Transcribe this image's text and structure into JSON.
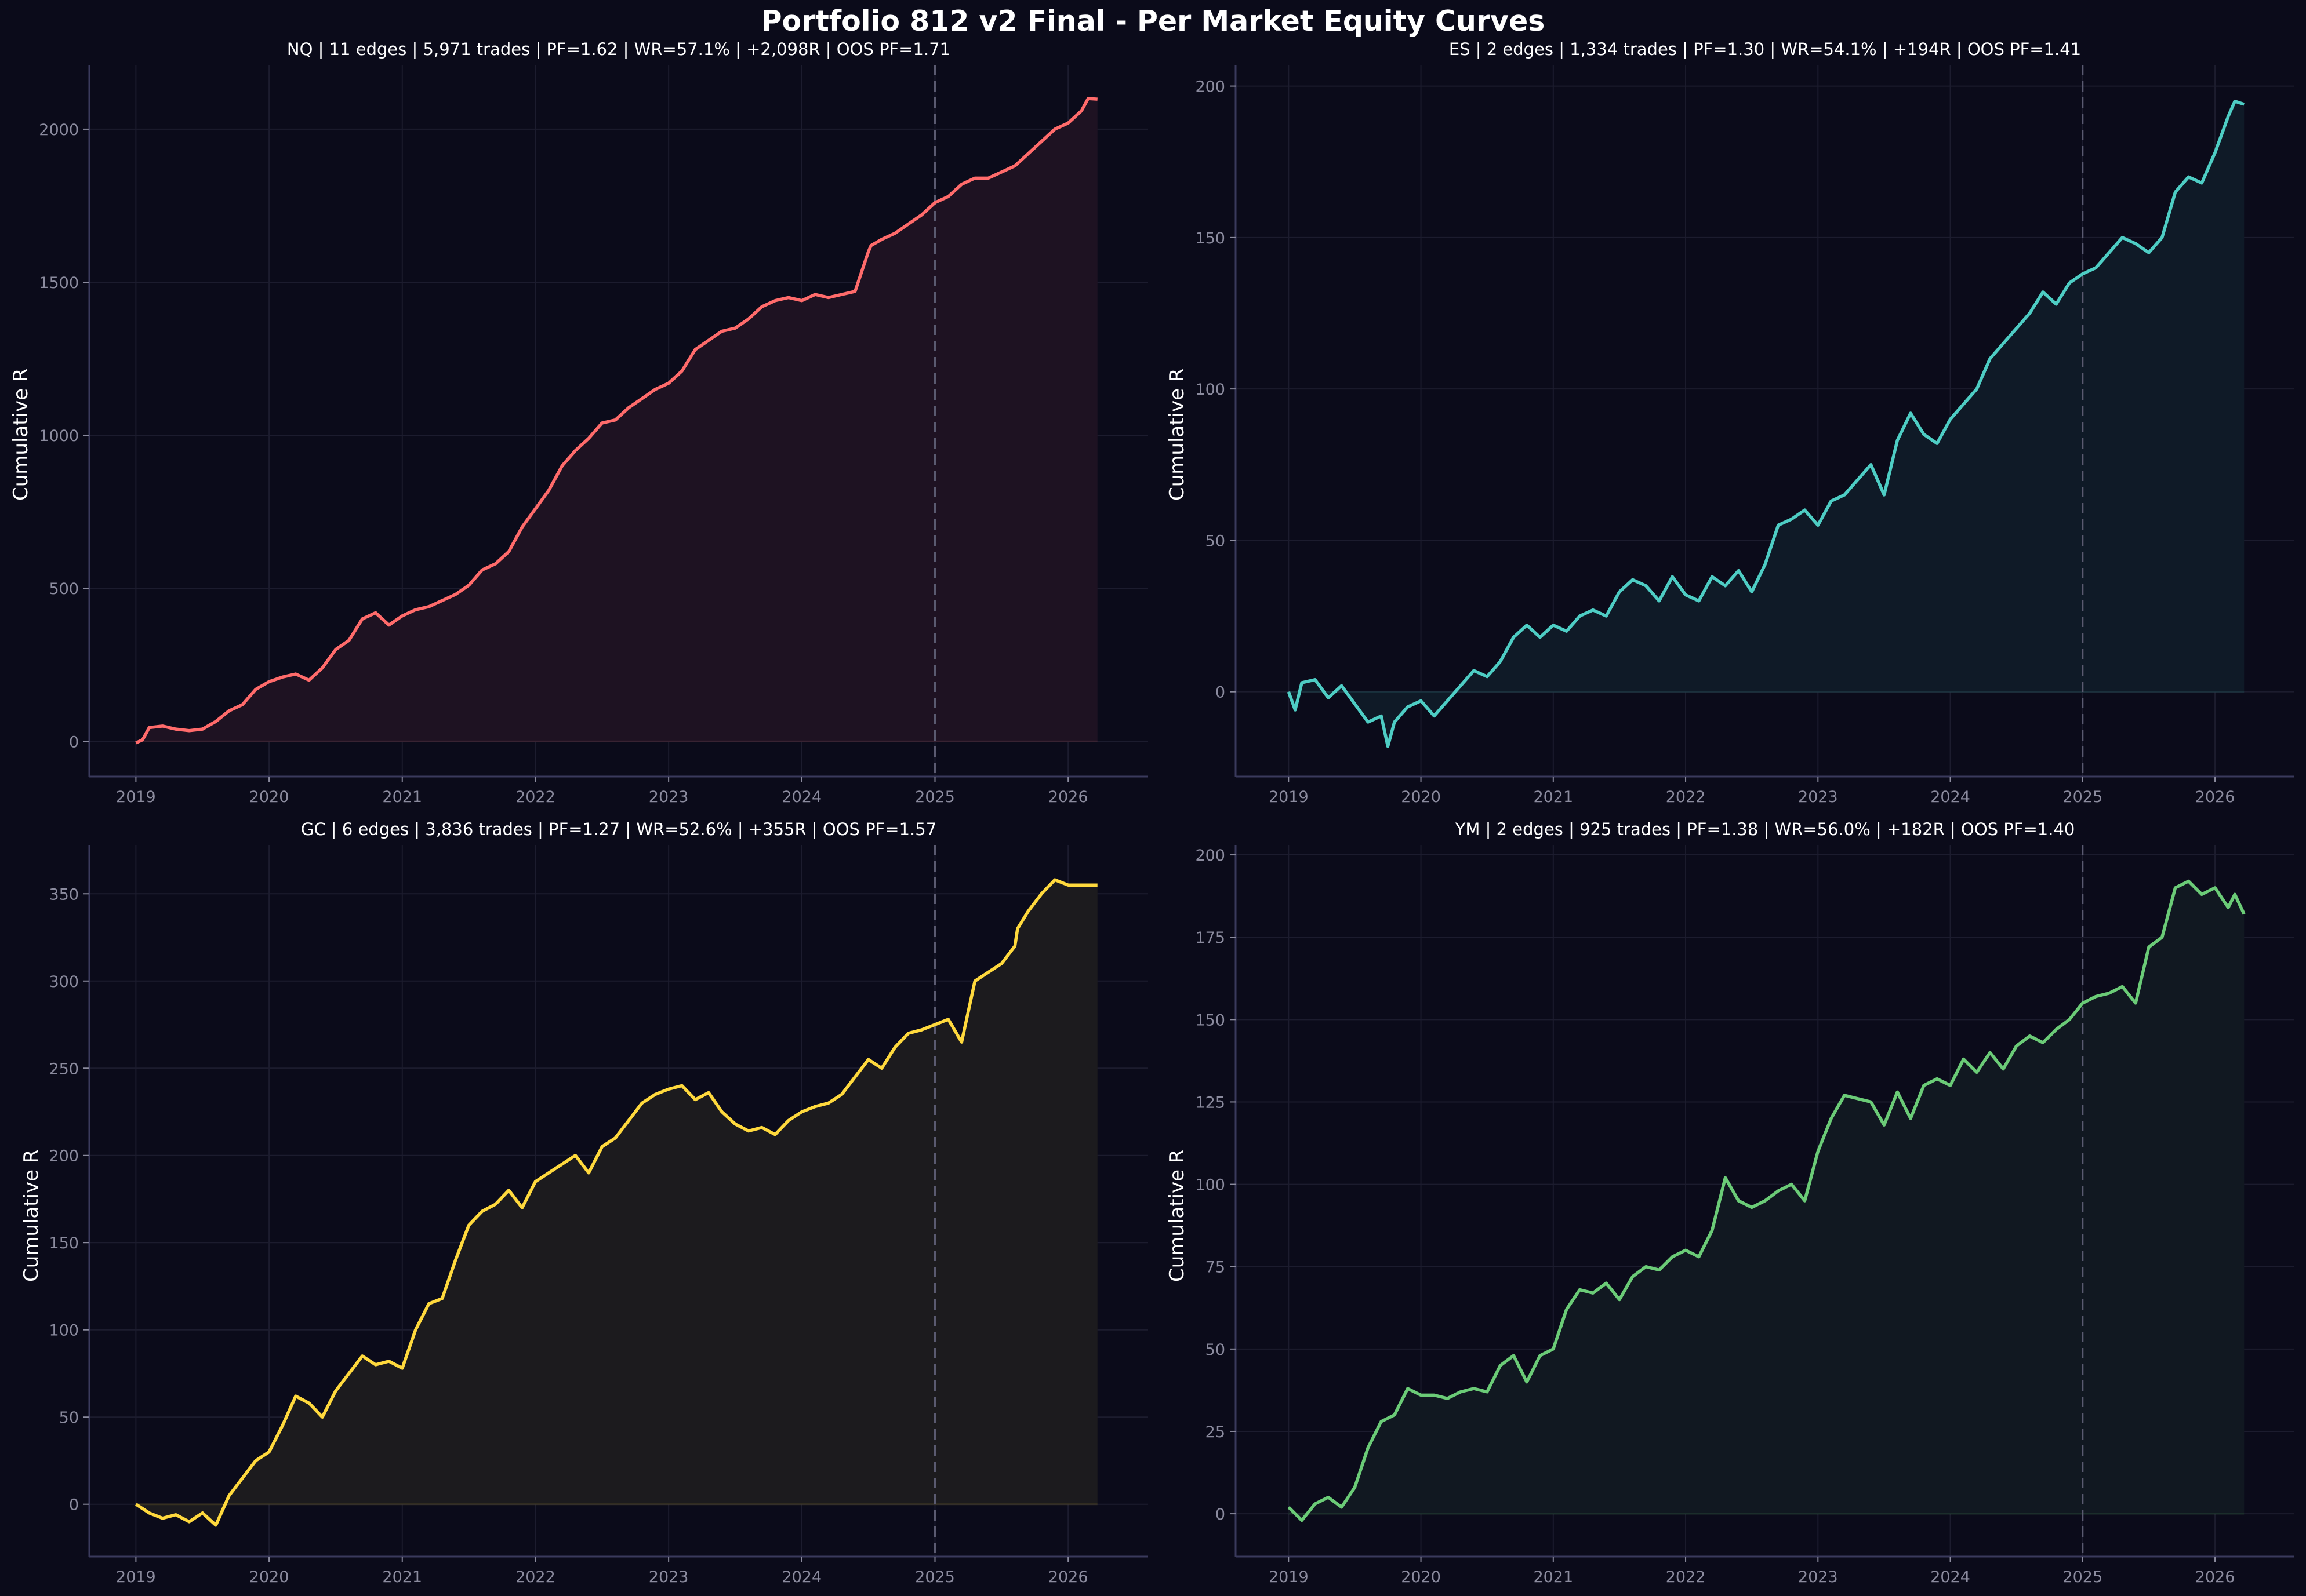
{
  "figure": {
    "title": "Portfolio 812 v2 Final - Per Market Equity Curves",
    "background": "#0b0b1a",
    "spine_color": "#3a3a5c",
    "grid_color": "#1c1c2e",
    "tick_label_color": "#8b8b9e",
    "oos_line_color": "#5a5a70"
  },
  "chart_data": [
    {
      "type": "area",
      "market": "NQ",
      "title": "NQ | 11 edges | 5,971 trades | PF=1.62 | WR=57.1% | +2,098R | OOS PF=1.71",
      "xlabel": "",
      "ylabel": "Cumulative R",
      "color": "#ff6b6b",
      "fill": "#1e1222",
      "xlim": [
        2018.65,
        2026.6
      ],
      "ylim": [
        -115,
        2210
      ],
      "yticks": [
        0,
        500,
        1000,
        1500,
        2000
      ],
      "xticks": [
        2019,
        2020,
        2021,
        2022,
        2023,
        2024,
        2025,
        2026
      ],
      "oos_start": 2025.0,
      "grid": true,
      "x": [
        2019.0,
        2019.05,
        2019.1,
        2019.2,
        2019.3,
        2019.4,
        2019.5,
        2019.6,
        2019.7,
        2019.8,
        2019.9,
        2020.0,
        2020.1,
        2020.2,
        2020.3,
        2020.4,
        2020.5,
        2020.6,
        2020.7,
        2020.8,
        2020.9,
        2021.0,
        2021.1,
        2021.2,
        2021.3,
        2021.4,
        2021.5,
        2021.6,
        2021.7,
        2021.8,
        2021.9,
        2022.0,
        2022.1,
        2022.2,
        2022.3,
        2022.4,
        2022.5,
        2022.6,
        2022.7,
        2022.8,
        2022.9,
        2023.0,
        2023.1,
        2023.2,
        2023.3,
        2023.4,
        2023.5,
        2023.6,
        2023.7,
        2023.8,
        2023.9,
        2024.0,
        2024.1,
        2024.2,
        2024.3,
        2024.4,
        2024.5,
        2024.52,
        2024.6,
        2024.7,
        2024.8,
        2024.9,
        2025.0,
        2025.1,
        2025.2,
        2025.3,
        2025.4,
        2025.5,
        2025.6,
        2025.7,
        2025.8,
        2025.9,
        2026.0,
        2026.05,
        2026.1,
        2026.15,
        2026.22
      ],
      "y": [
        -5,
        5,
        45,
        50,
        40,
        35,
        40,
        65,
        100,
        120,
        170,
        195,
        210,
        220,
        200,
        240,
        300,
        330,
        400,
        420,
        380,
        410,
        430,
        440,
        460,
        480,
        510,
        560,
        580,
        620,
        700,
        760,
        820,
        900,
        950,
        990,
        1040,
        1050,
        1090,
        1120,
        1150,
        1170,
        1210,
        1280,
        1310,
        1340,
        1350,
        1380,
        1420,
        1440,
        1450,
        1440,
        1460,
        1450,
        1460,
        1470,
        1600,
        1620,
        1640,
        1660,
        1690,
        1720,
        1760,
        1780,
        1820,
        1840,
        1840,
        1860,
        1880,
        1920,
        1960,
        2000,
        2020,
        2040,
        2060,
        2100,
        2098
      ]
    },
    {
      "type": "area",
      "market": "ES",
      "title": "ES | 2 edges | 1,334 trades | PF=1.30 | WR=54.1% | +194R | OOS PF=1.41",
      "xlabel": "",
      "ylabel": "Cumulative R",
      "color": "#4ecdc4",
      "fill": "#0f1a27",
      "xlim": [
        2018.6,
        2026.6
      ],
      "ylim": [
        -28,
        207
      ],
      "yticks": [
        0,
        50,
        100,
        150,
        200
      ],
      "xticks": [
        2019,
        2020,
        2021,
        2022,
        2023,
        2024,
        2025,
        2026
      ],
      "oos_start": 2025.0,
      "grid": true,
      "x": [
        2019.0,
        2019.05,
        2019.1,
        2019.2,
        2019.3,
        2019.4,
        2019.5,
        2019.6,
        2019.7,
        2019.75,
        2019.8,
        2019.9,
        2020.0,
        2020.1,
        2020.2,
        2020.3,
        2020.4,
        2020.5,
        2020.6,
        2020.7,
        2020.8,
        2020.9,
        2021.0,
        2021.1,
        2021.2,
        2021.3,
        2021.4,
        2021.5,
        2021.6,
        2021.7,
        2021.8,
        2021.9,
        2022.0,
        2022.1,
        2022.2,
        2022.3,
        2022.4,
        2022.5,
        2022.6,
        2022.7,
        2022.8,
        2022.9,
        2023.0,
        2023.1,
        2023.2,
        2023.3,
        2023.4,
        2023.5,
        2023.6,
        2023.7,
        2023.8,
        2023.9,
        2024.0,
        2024.1,
        2024.2,
        2024.3,
        2024.4,
        2024.5,
        2024.6,
        2024.7,
        2024.8,
        2024.9,
        2025.0,
        2025.1,
        2025.2,
        2025.3,
        2025.4,
        2025.5,
        2025.6,
        2025.7,
        2025.8,
        2025.9,
        2026.0,
        2026.1,
        2026.15,
        2026.22
      ],
      "y": [
        0,
        -6,
        3,
        4,
        -2,
        2,
        -4,
        -10,
        -8,
        -18,
        -10,
        -5,
        -3,
        -8,
        -3,
        2,
        7,
        5,
        10,
        18,
        22,
        18,
        22,
        20,
        25,
        27,
        25,
        33,
        37,
        35,
        30,
        38,
        32,
        30,
        38,
        35,
        40,
        33,
        42,
        55,
        57,
        60,
        55,
        63,
        65,
        70,
        75,
        65,
        83,
        92,
        85,
        82,
        90,
        95,
        100,
        110,
        115,
        120,
        125,
        132,
        128,
        135,
        138,
        140,
        145,
        150,
        148,
        145,
        150,
        165,
        170,
        168,
        178,
        190,
        195,
        194
      ]
    },
    {
      "type": "area",
      "market": "GC",
      "title": "GC | 6 edges | 3,836 trades | PF=1.27 | WR=52.6% | +355R | OOS PF=1.57",
      "xlabel": "",
      "ylabel": "Cumulative R",
      "color": "#ffd93d",
      "fill": "#1c1b1e",
      "xlim": [
        2018.65,
        2026.6
      ],
      "ylim": [
        -30,
        378
      ],
      "yticks": [
        0,
        50,
        100,
        150,
        200,
        250,
        300,
        350
      ],
      "xticks": [
        2019,
        2020,
        2021,
        2022,
        2023,
        2024,
        2025,
        2026
      ],
      "oos_start": 2025.0,
      "grid": true,
      "x": [
        2019.0,
        2019.1,
        2019.2,
        2019.3,
        2019.4,
        2019.5,
        2019.6,
        2019.7,
        2019.8,
        2019.9,
        2020.0,
        2020.1,
        2020.2,
        2020.3,
        2020.4,
        2020.5,
        2020.6,
        2020.7,
        2020.8,
        2020.9,
        2021.0,
        2021.1,
        2021.2,
        2021.3,
        2021.4,
        2021.5,
        2021.6,
        2021.7,
        2021.8,
        2021.9,
        2022.0,
        2022.1,
        2022.2,
        2022.3,
        2022.4,
        2022.5,
        2022.6,
        2022.7,
        2022.8,
        2022.9,
        2023.0,
        2023.1,
        2023.2,
        2023.3,
        2023.4,
        2023.5,
        2023.6,
        2023.7,
        2023.8,
        2023.9,
        2024.0,
        2024.1,
        2024.2,
        2024.3,
        2024.4,
        2024.5,
        2024.6,
        2024.7,
        2024.8,
        2024.9,
        2025.0,
        2025.1,
        2025.2,
        2025.3,
        2025.4,
        2025.5,
        2025.6,
        2025.62,
        2025.7,
        2025.8,
        2025.9,
        2026.0,
        2026.1,
        2026.15,
        2026.22
      ],
      "y": [
        0,
        -5,
        -8,
        -6,
        -10,
        -5,
        -12,
        5,
        15,
        25,
        30,
        45,
        62,
        58,
        50,
        65,
        75,
        85,
        80,
        82,
        78,
        100,
        115,
        118,
        140,
        160,
        168,
        172,
        180,
        170,
        185,
        190,
        195,
        200,
        190,
        205,
        210,
        220,
        230,
        235,
        238,
        240,
        232,
        236,
        225,
        218,
        214,
        216,
        212,
        220,
        225,
        228,
        230,
        235,
        245,
        255,
        250,
        262,
        270,
        272,
        275,
        278,
        265,
        300,
        305,
        310,
        320,
        330,
        340,
        350,
        358,
        355,
        355,
        355,
        355
      ]
    },
    {
      "type": "area",
      "market": "YM",
      "title": "YM | 2 edges | 925 trades | PF=1.38 | WR=56.0% | +182R | OOS PF=1.40",
      "xlabel": "",
      "ylabel": "Cumulative R",
      "color": "#6bcb77",
      "fill": "#111821",
      "xlim": [
        2018.6,
        2026.6
      ],
      "ylim": [
        -13,
        203
      ],
      "yticks": [
        0,
        25,
        50,
        75,
        100,
        125,
        150,
        175,
        200
      ],
      "xticks": [
        2019,
        2020,
        2021,
        2022,
        2023,
        2024,
        2025,
        2026
      ],
      "oos_start": 2025.0,
      "grid": true,
      "x": [
        2019.0,
        2019.1,
        2019.2,
        2019.3,
        2019.4,
        2019.5,
        2019.6,
        2019.7,
        2019.8,
        2019.9,
        2020.0,
        2020.1,
        2020.2,
        2020.3,
        2020.4,
        2020.5,
        2020.6,
        2020.7,
        2020.8,
        2020.9,
        2021.0,
        2021.1,
        2021.2,
        2021.3,
        2021.4,
        2021.5,
        2021.6,
        2021.7,
        2021.8,
        2021.9,
        2022.0,
        2022.1,
        2022.2,
        2022.3,
        2022.4,
        2022.5,
        2022.6,
        2022.7,
        2022.8,
        2022.9,
        2023.0,
        2023.1,
        2023.2,
        2023.3,
        2023.4,
        2023.5,
        2023.6,
        2023.7,
        2023.8,
        2023.9,
        2024.0,
        2024.1,
        2024.2,
        2024.3,
        2024.4,
        2024.5,
        2024.6,
        2024.7,
        2024.8,
        2024.9,
        2025.0,
        2025.1,
        2025.2,
        2025.3,
        2025.4,
        2025.5,
        2025.6,
        2025.7,
        2025.8,
        2025.9,
        2026.0,
        2026.1,
        2026.15,
        2026.22
      ],
      "y": [
        2,
        -2,
        3,
        5,
        2,
        8,
        20,
        28,
        30,
        38,
        36,
        36,
        35,
        37,
        38,
        37,
        45,
        48,
        40,
        48,
        50,
        62,
        68,
        67,
        70,
        65,
        72,
        75,
        74,
        78,
        80,
        78,
        86,
        102,
        95,
        93,
        95,
        98,
        100,
        95,
        110,
        120,
        127,
        126,
        125,
        118,
        128,
        120,
        130,
        132,
        130,
        138,
        134,
        140,
        135,
        142,
        145,
        143,
        147,
        150,
        155,
        157,
        158,
        160,
        155,
        172,
        175,
        190,
        192,
        188,
        190,
        184,
        188,
        182
      ]
    }
  ]
}
